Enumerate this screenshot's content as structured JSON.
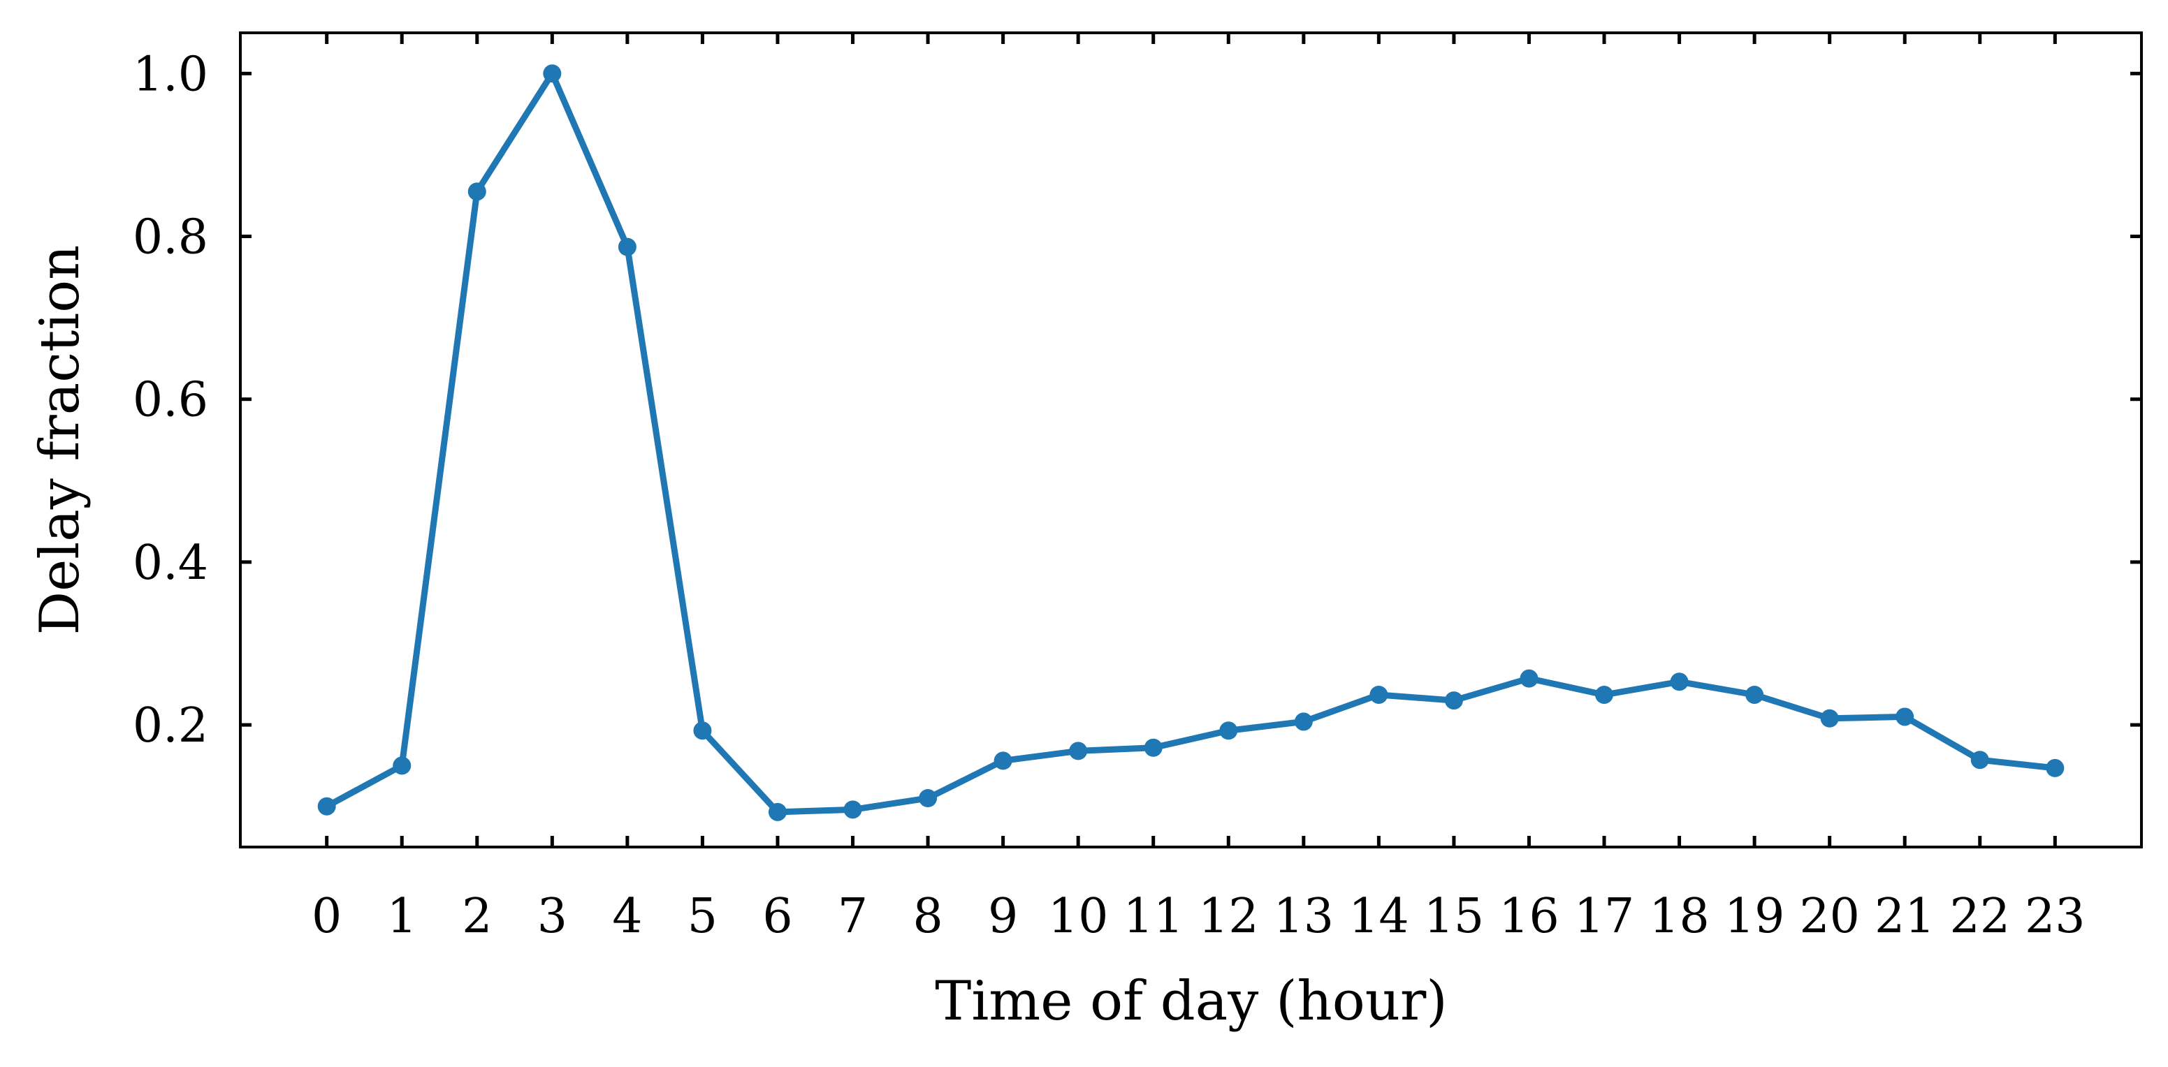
{
  "chart_data": {
    "type": "line",
    "xlabel": "Time of day (hour)",
    "ylabel": "Delay fraction",
    "categories": [
      "0",
      "1",
      "2",
      "3",
      "4",
      "5",
      "6",
      "7",
      "8",
      "9",
      "10",
      "11",
      "12",
      "13",
      "14",
      "15",
      "16",
      "17",
      "18",
      "19",
      "20",
      "21",
      "22",
      "23"
    ],
    "x": [
      0,
      1,
      2,
      3,
      4,
      5,
      6,
      7,
      8,
      9,
      10,
      11,
      12,
      13,
      14,
      15,
      16,
      17,
      18,
      19,
      20,
      21,
      22,
      23
    ],
    "series": [
      {
        "values": [
          0.1,
          0.15,
          0.855,
          1.0,
          0.787,
          0.193,
          0.093,
          0.096,
          0.11,
          0.156,
          0.168,
          0.172,
          0.193,
          0.204,
          0.237,
          0.23,
          0.257,
          0.237,
          0.253,
          0.237,
          0.208,
          0.21,
          0.157,
          0.147
        ],
        "color": "#1f77b4",
        "marker": "circle"
      }
    ],
    "xlim": [
      -1.15,
      24.15
    ],
    "ylim": [
      0.05,
      1.05
    ],
    "yticks": [
      0.2,
      0.4,
      0.6,
      0.8,
      1.0
    ],
    "ytick_labels": [
      "0.2",
      "0.4",
      "0.6",
      "0.8",
      "1.0"
    ],
    "grid": false,
    "legend": "none",
    "ticks_direction": "in",
    "ticks_on_all_sides": true
  }
}
